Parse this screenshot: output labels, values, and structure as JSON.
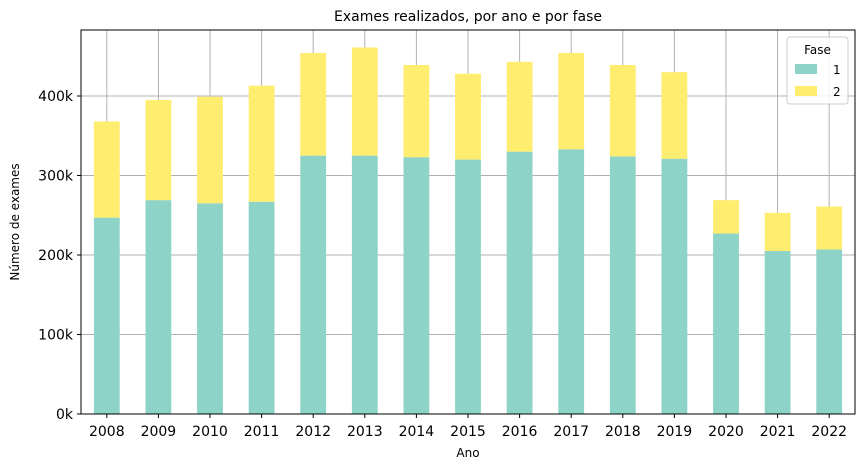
{
  "chart_data": {
    "type": "bar",
    "stacked": true,
    "title": "Exames realizados, por ano e por fase",
    "xlabel": "Ano",
    "ylabel": "Número de exames",
    "categories": [
      "2008",
      "2009",
      "2010",
      "2011",
      "2012",
      "2013",
      "2014",
      "2015",
      "2016",
      "2017",
      "2018",
      "2019",
      "2020",
      "2021",
      "2022"
    ],
    "series": [
      {
        "name": "1",
        "color": "#8dd3c7",
        "values": [
          247000,
          269000,
          265000,
          267000,
          325000,
          325000,
          323000,
          320000,
          330000,
          333000,
          324000,
          321000,
          227000,
          205000,
          207000
        ]
      },
      {
        "name": "2",
        "color": "#ffed6f",
        "values": [
          121000,
          126000,
          134000,
          146000,
          129000,
          136000,
          116000,
          108000,
          113000,
          121000,
          115000,
          109000,
          42000,
          48000,
          54000
        ]
      }
    ],
    "ylim": [
      0,
      483000
    ],
    "yticks": [
      0,
      100000,
      200000,
      300000,
      400000
    ],
    "ytick_labels": [
      "0k",
      "100k",
      "200k",
      "300k",
      "400k"
    ],
    "grid": true,
    "legend": {
      "title": "Fase",
      "position": "top-right"
    }
  }
}
